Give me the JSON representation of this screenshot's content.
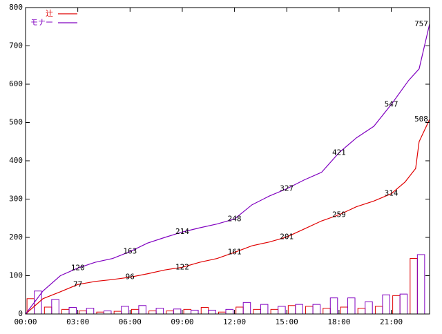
{
  "chart_data": {
    "type": "line",
    "xlim": [
      0,
      23.2
    ],
    "xticks": [
      {
        "value": 0,
        "label": "00:00"
      },
      {
        "value": 3,
        "label": "03:00"
      },
      {
        "value": 6,
        "label": "06:00"
      },
      {
        "value": 9,
        "label": "09:00"
      },
      {
        "value": 12,
        "label": "12:00"
      },
      {
        "value": 15,
        "label": "15:00"
      },
      {
        "value": 18,
        "label": "18:00"
      },
      {
        "value": 21,
        "label": "21:00"
      }
    ],
    "ylim": [
      0,
      800
    ],
    "yticks": [
      0,
      100,
      200,
      300,
      400,
      500,
      600,
      700,
      800
    ],
    "legend": "top-left",
    "series": [
      {
        "name": "辻",
        "color": "#e00000",
        "x": [
          0,
          1,
          2,
          3,
          4,
          5,
          6,
          7,
          8,
          9,
          10,
          11,
          12,
          13,
          14,
          15,
          16,
          17,
          18,
          19,
          20,
          21,
          21.8,
          22.4,
          22.6,
          23.2
        ],
        "values": [
          0,
          40,
          58,
          77,
          85,
          90,
          96,
          105,
          115,
          122,
          135,
          145,
          161,
          178,
          188,
          201,
          222,
          243,
          259,
          280,
          295,
          314,
          345,
          380,
          450,
          508
        ],
        "labels": [
          {
            "x": 3,
            "value": 77
          },
          {
            "x": 6,
            "value": 96
          },
          {
            "x": 9,
            "value": 122
          },
          {
            "x": 12,
            "value": 161
          },
          {
            "x": 15,
            "value": 201
          },
          {
            "x": 18,
            "value": 259
          },
          {
            "x": 21,
            "value": 314
          },
          {
            "x": 23.2,
            "value": 508
          }
        ]
      },
      {
        "name": "モナー",
        "color": "#8000c0",
        "x": [
          0,
          1,
          2,
          3,
          4,
          5,
          6,
          7,
          8,
          9,
          10,
          11,
          12,
          13,
          14,
          15,
          16,
          17,
          18,
          19,
          20,
          21,
          22,
          22.6,
          23.2
        ],
        "values": [
          0,
          60,
          100,
          120,
          135,
          145,
          163,
          185,
          200,
          214,
          225,
          235,
          248,
          285,
          308,
          327,
          350,
          370,
          421,
          460,
          490,
          547,
          610,
          640,
          757
        ],
        "labels": [
          {
            "x": 3,
            "value": 120
          },
          {
            "x": 6,
            "value": 163
          },
          {
            "x": 9,
            "value": 214
          },
          {
            "x": 12,
            "value": 248
          },
          {
            "x": 15,
            "value": 327
          },
          {
            "x": 18,
            "value": 421
          },
          {
            "x": 21,
            "value": 547
          },
          {
            "x": 23.2,
            "value": 757
          }
        ]
      }
    ],
    "histogram": {
      "bins": [
        0,
        1,
        2,
        3,
        4,
        5,
        6,
        7,
        8,
        9,
        10,
        11,
        12,
        13,
        14,
        15,
        16,
        17,
        18,
        19,
        20,
        21,
        22,
        23
      ],
      "series": [
        {
          "color": "#e00000",
          "values": [
            40,
            18,
            12,
            8,
            5,
            7,
            12,
            8,
            8,
            12,
            17,
            5,
            18,
            12,
            12,
            22,
            20,
            15,
            18,
            15,
            20,
            48,
            145
          ]
        },
        {
          "color": "#8000c0",
          "values": [
            60,
            38,
            17,
            15,
            8,
            20,
            22,
            15,
            13,
            10,
            10,
            12,
            30,
            25,
            20,
            25,
            25,
            42,
            42,
            32,
            50,
            52,
            155
          ]
        }
      ]
    }
  }
}
